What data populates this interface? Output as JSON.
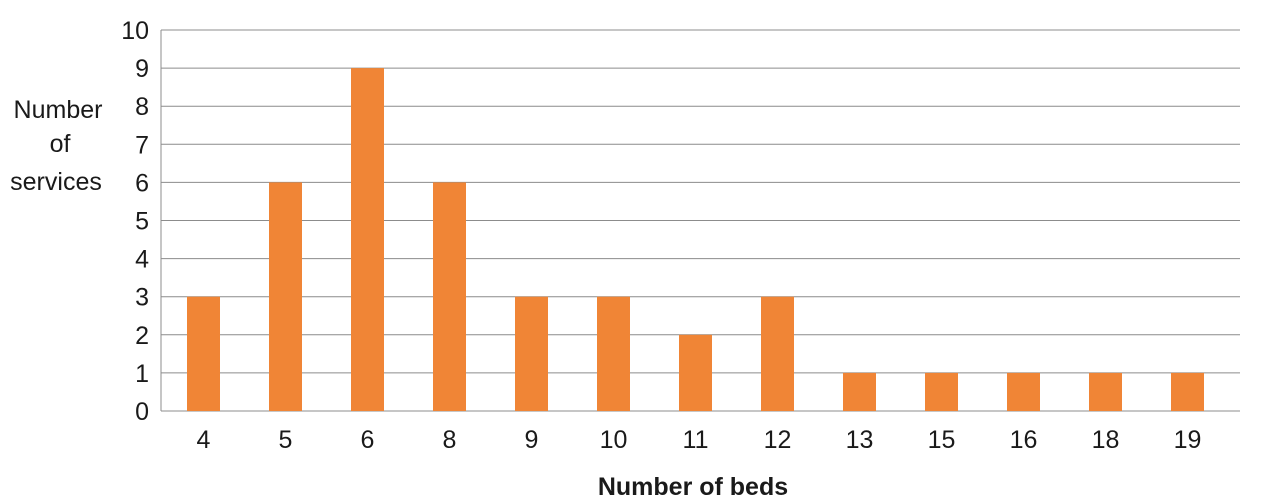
{
  "chart_data": {
    "type": "bar",
    "title": "",
    "xlabel": "Number of beds",
    "ylabel_lines": [
      "Number",
      "of",
      "services"
    ],
    "categories": [
      "4",
      "5",
      "6",
      "8",
      "9",
      "10",
      "11",
      "12",
      "13",
      "15",
      "16",
      "18",
      "19"
    ],
    "values": [
      3,
      6,
      9,
      6,
      3,
      3,
      2,
      3,
      1,
      1,
      1,
      1,
      1
    ],
    "ylim": [
      0,
      10
    ],
    "yticks": [
      "0",
      "1",
      "2",
      "3",
      "4",
      "5",
      "6",
      "7",
      "8",
      "9",
      "10"
    ],
    "grid": true,
    "legend": "none",
    "bar_color": "#f08536",
    "grid_color": "#8c8c8c",
    "text_color": "#1a1a1a"
  }
}
